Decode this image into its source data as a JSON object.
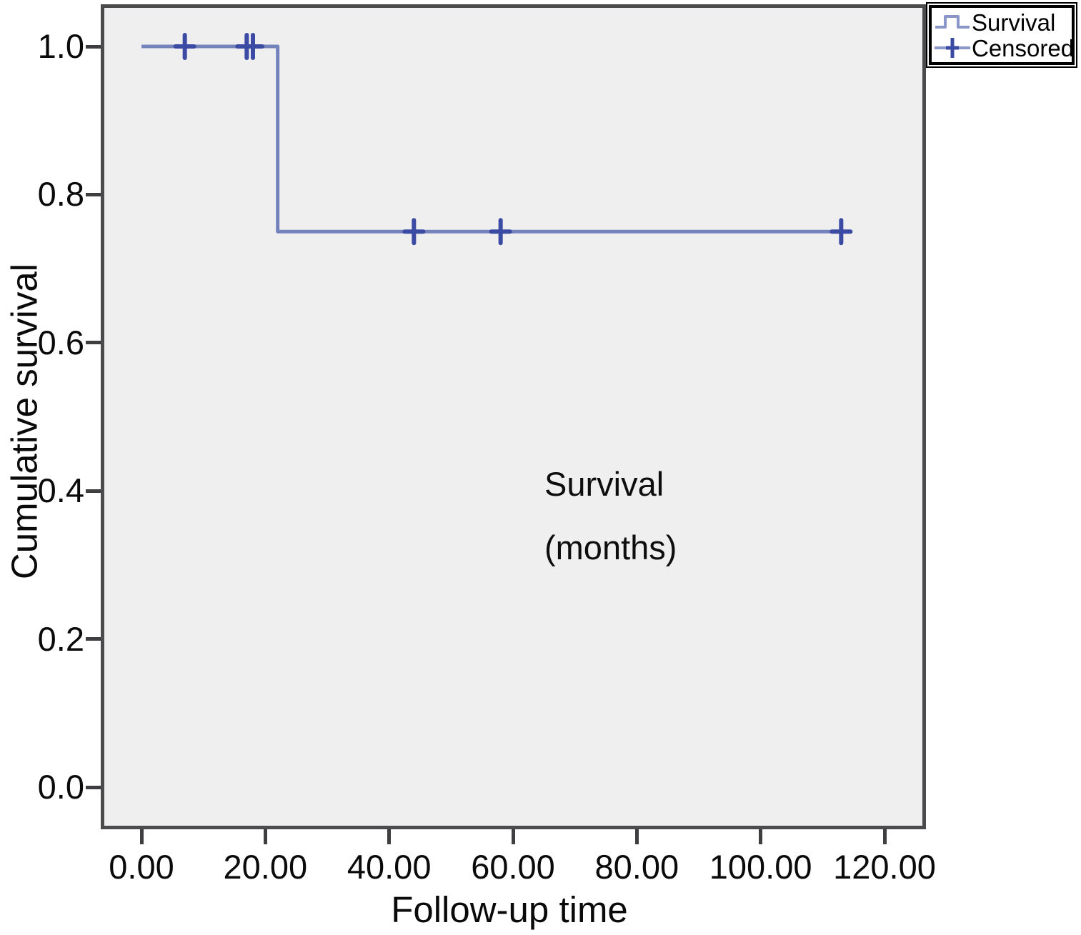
{
  "chart_data": {
    "type": "line",
    "subtype": "kaplan-meier-step",
    "title": "",
    "xlabel": "Follow-up time",
    "ylabel": "Cumulative survival",
    "annotation": {
      "line1": "Survival",
      "line2": "(months)"
    },
    "x_axis": {
      "range": [
        -6,
        126
      ],
      "ticks": [
        {
          "v": 0,
          "label": "0.00"
        },
        {
          "v": 20,
          "label": "20.00"
        },
        {
          "v": 40,
          "label": "40.00"
        },
        {
          "v": 60,
          "label": "60.00"
        },
        {
          "v": 80,
          "label": "80.00"
        },
        {
          "v": 100,
          "label": "100.00"
        },
        {
          "v": 120,
          "label": "120.00"
        }
      ]
    },
    "y_axis": {
      "range": [
        -0.06,
        1.06
      ],
      "ticks": [
        {
          "v": 1.0,
          "label": "1.0"
        },
        {
          "v": 0.8,
          "label": "0.8"
        },
        {
          "v": 0.6,
          "label": "0.6"
        },
        {
          "v": 0.4,
          "label": "0.4"
        },
        {
          "v": 0.2,
          "label": "0.2"
        },
        {
          "v": 0.0,
          "label": "0.0"
        }
      ]
    },
    "series": [
      {
        "name": "Survival",
        "steps": [
          {
            "x": 0,
            "y": 1.0
          },
          {
            "x": 22,
            "y": 1.0
          },
          {
            "x": 22,
            "y": 0.75
          },
          {
            "x": 113,
            "y": 0.75
          }
        ]
      }
    ],
    "censored": [
      {
        "x": 7,
        "y": 1.0
      },
      {
        "x": 17,
        "y": 1.0
      },
      {
        "x": 18,
        "y": 1.0
      },
      {
        "x": 44,
        "y": 0.75
      },
      {
        "x": 58,
        "y": 0.75
      },
      {
        "x": 113,
        "y": 0.75
      }
    ],
    "legend": [
      {
        "label": "Survival",
        "marker": "step-line"
      },
      {
        "label": "Censored",
        "marker": "plus"
      }
    ],
    "colors": {
      "line": "#7583bd",
      "censored": "#3b4aa2",
      "plot_bg": "#f0efef",
      "plot_border": "#4b4b4d",
      "tick": "#3e3e40",
      "legend_border": "#000000"
    }
  }
}
